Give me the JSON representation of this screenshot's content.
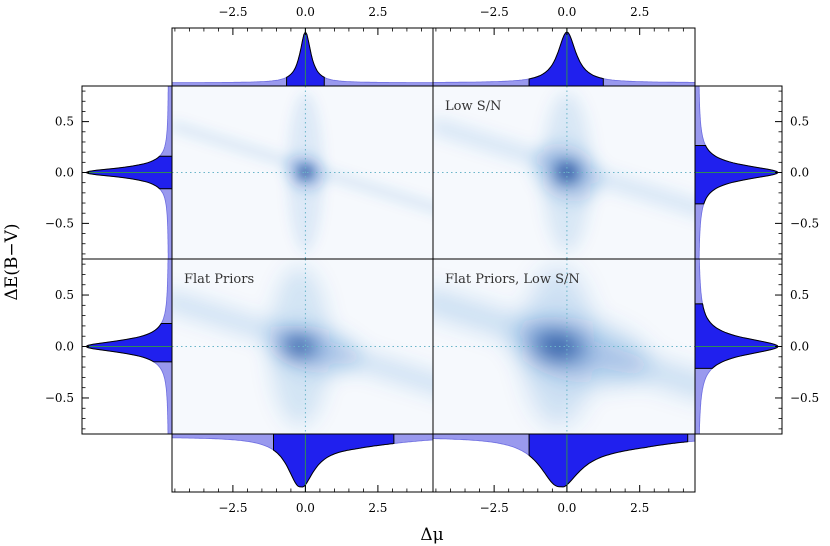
{
  "chart_data": {
    "type": "heatmap",
    "xlabel": "Δμ",
    "ylabel": "ΔE(B−V)",
    "xlim": [
      -4.6,
      4.4
    ],
    "ylim": [
      -0.85,
      0.85
    ],
    "xticks": [
      "−2.5",
      "0.0",
      "2.5"
    ],
    "xtick_values": [
      -2.5,
      0,
      2.5
    ],
    "yticks": [
      "0.5",
      "0.0",
      "−0.5"
    ],
    "ytick_values": [
      0.5,
      0,
      -0.5
    ],
    "reference_lines": {
      "x": 0,
      "y": 0
    },
    "colors": {
      "density": "#1565c0",
      "marginal_light": "#9999ee",
      "marginal_dark": "#2020ee",
      "reference_line": "#2e8b57"
    },
    "panels": [
      {
        "id": "default",
        "label": "",
        "peak": [
          0.0,
          0.0
        ],
        "spread_mu": 0.45,
        "spread_e": 0.08,
        "mu_interval": [
          -0.65,
          0.7
        ],
        "e_interval": [
          -0.16,
          0.16
        ]
      },
      {
        "id": "low-sn",
        "label": "Low S/N",
        "peak": [
          0.0,
          0.0
        ],
        "spread_mu": 0.75,
        "spread_e": 0.12,
        "mu_interval": [
          -1.3,
          1.25
        ],
        "e_interval": [
          -0.31,
          0.27
        ]
      },
      {
        "id": "flat-priors",
        "label": "Flat Priors",
        "peak": [
          -0.2,
          0.0
        ],
        "spread_mu": 1.0,
        "spread_e": 0.1,
        "mu_interval": [
          -1.1,
          3.1
        ],
        "e_interval": [
          -0.15,
          0.23
        ]
      },
      {
        "id": "flat-priors-low-sn",
        "label": "Flat Priors, Low S/N",
        "peak": [
          -0.3,
          0.0
        ],
        "spread_mu": 1.5,
        "spread_e": 0.14,
        "mu_interval": [
          -1.3,
          4.2
        ],
        "e_interval": [
          -0.22,
          0.42
        ]
      }
    ]
  }
}
